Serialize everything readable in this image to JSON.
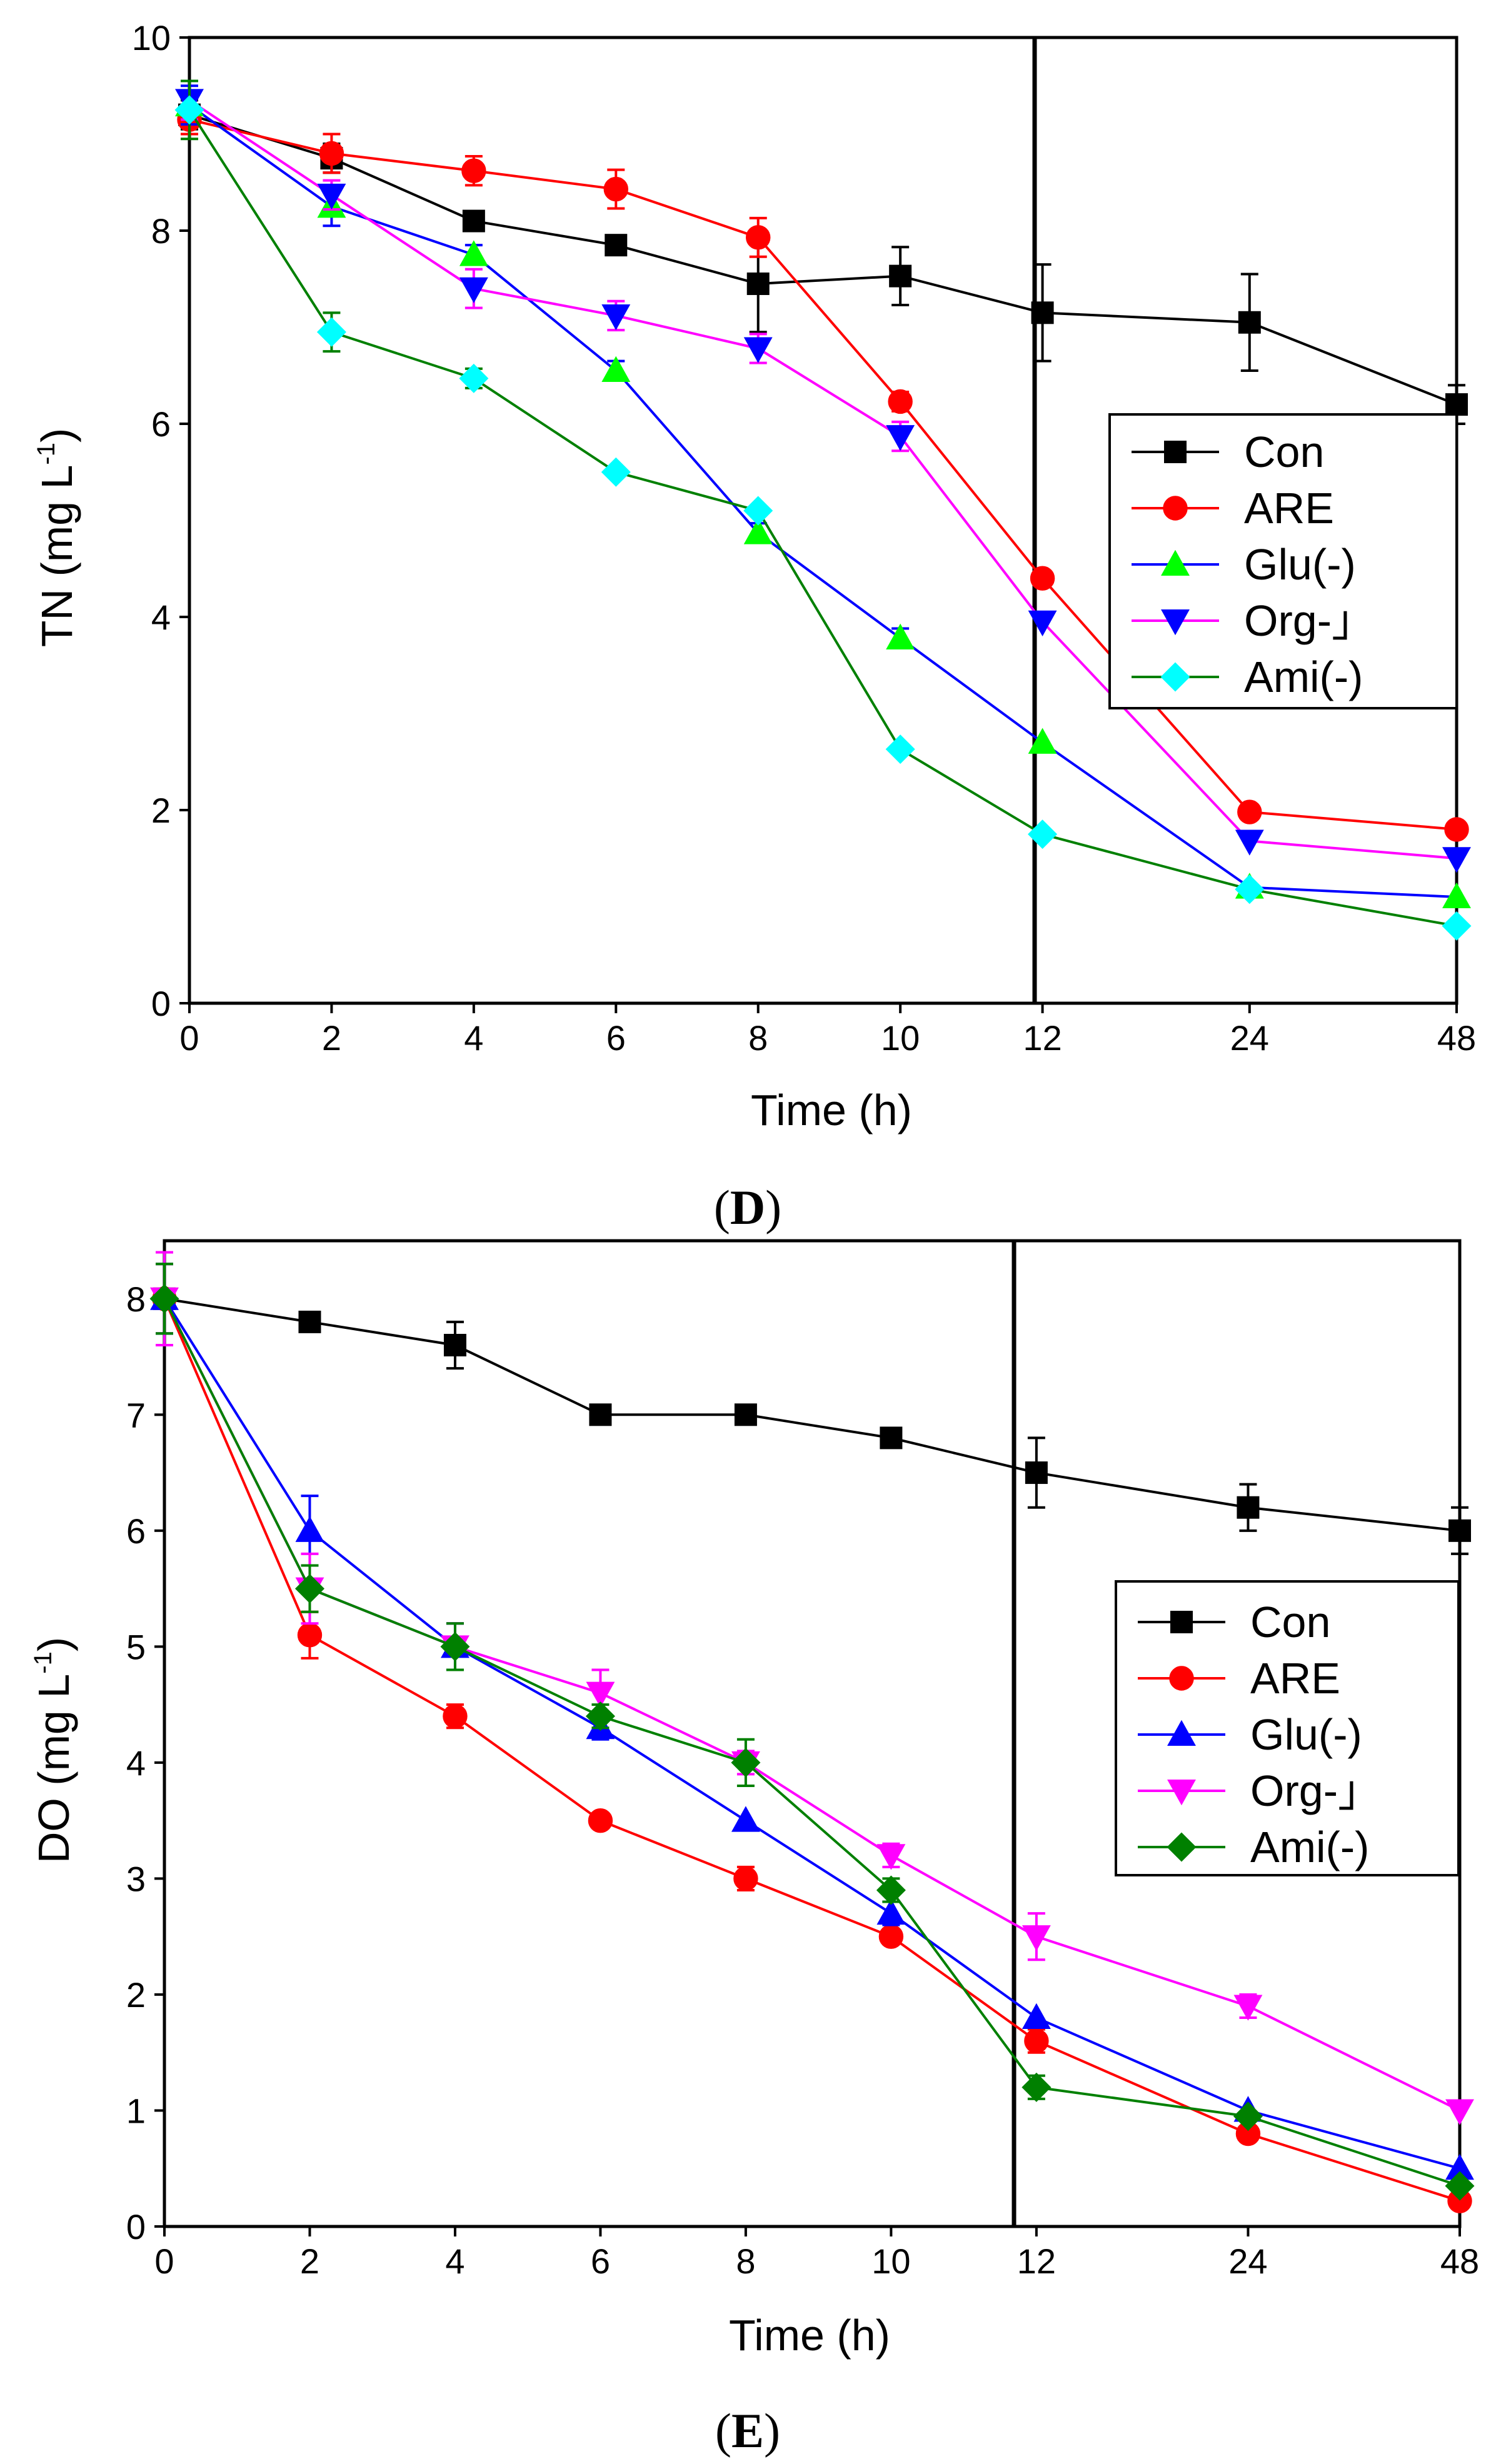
{
  "chart_data": [
    {
      "type": "line",
      "panel_label": "D",
      "xlabel": "Time (h)",
      "ylabel": "TN (mg L",
      "ylabel_superscript": "-1",
      "ylabel_close": ")",
      "categories": [
        "0",
        "2",
        "4",
        "6",
        "8",
        "10",
        "12",
        "24",
        "48"
      ],
      "ylim": [
        0,
        10
      ],
      "yticks": [
        0,
        2,
        4,
        6,
        8,
        10
      ],
      "divider_after_category": "12",
      "legend_position": "right",
      "series": [
        {
          "name": "Con",
          "color": "#000000",
          "marker": "square",
          "values": [
            9.2,
            8.75,
            8.1,
            7.85,
            7.45,
            7.53,
            7.15,
            7.05,
            6.2
          ],
          "errors": [
            0.15,
            0.15,
            0.05,
            0.05,
            0.5,
            0.3,
            0.5,
            0.5,
            0.2
          ]
        },
        {
          "name": "ARE",
          "color": "#ff0000",
          "marker": "circle",
          "values": [
            9.15,
            8.8,
            8.62,
            8.43,
            7.93,
            6.23,
            4.4,
            1.98,
            1.8
          ],
          "errors": [
            0.15,
            0.2,
            0.15,
            0.2,
            0.2,
            0.1,
            0.05,
            0.05,
            0.05
          ]
        },
        {
          "name": "Glu(-)",
          "color": "#00ff00",
          "marker": "triangle-up",
          "values": [
            9.3,
            8.25,
            7.75,
            6.55,
            4.87,
            3.78,
            2.7,
            1.2,
            1.1
          ],
          "errors": [
            0.2,
            0.2,
            0.1,
            0.1,
            0.1,
            0.1,
            0.05,
            0.05,
            0.05
          ]
        },
        {
          "name": "Org-」",
          "color": "#ff00ff",
          "marker": "triangle-down",
          "values": [
            9.35,
            8.37,
            7.4,
            7.12,
            6.78,
            5.87,
            3.95,
            1.68,
            1.5
          ],
          "errors": [
            0.2,
            0.15,
            0.2,
            0.15,
            0.15,
            0.15,
            0.05,
            0.05,
            0.05
          ]
        },
        {
          "name": "Ami(-)",
          "color": "#00ffff",
          "marker": "diamond",
          "values": [
            9.25,
            6.95,
            6.47,
            5.5,
            5.1,
            2.63,
            1.75,
            1.18,
            0.8
          ],
          "errors": [
            0.3,
            0.2,
            0.1,
            0.05,
            0.05,
            0.05,
            0.05,
            0.05,
            0.05
          ]
        }
      ],
      "line_colors": {
        "Con": "#000000",
        "ARE": "#ff0000",
        "Glu(-)": "#0000ff",
        "Org-」": "#ff00ff",
        "Ami(-)": "#008000"
      },
      "marker_fills": {
        "Con": "#000000",
        "ARE": "#ff0000",
        "Glu(-)": "#00ff00",
        "Org-」": "#0000ff",
        "Ami(-)": "#00ffff"
      }
    },
    {
      "type": "line",
      "panel_label": "E",
      "xlabel": "Time (h)",
      "ylabel": "DO (mg L",
      "ylabel_superscript": "-1",
      "ylabel_close": ")",
      "categories": [
        "0",
        "2",
        "4",
        "6",
        "8",
        "10",
        "12",
        "24",
        "48"
      ],
      "ylim": [
        0,
        8.5
      ],
      "yticks": [
        0,
        1,
        2,
        3,
        4,
        5,
        6,
        7,
        8
      ],
      "divider_after_category": "12",
      "legend_position": "right",
      "series": [
        {
          "name": "Con",
          "color": "#000000",
          "marker": "square",
          "values": [
            8.0,
            7.8,
            7.6,
            7.0,
            7.0,
            6.8,
            6.5,
            6.2,
            6.0
          ],
          "errors": [
            0.3,
            0.05,
            0.2,
            0.05,
            0.05,
            0.05,
            0.3,
            0.2,
            0.2
          ]
        },
        {
          "name": "ARE",
          "color": "#ff0000",
          "marker": "circle",
          "values": [
            8.0,
            5.1,
            4.4,
            3.5,
            3.0,
            2.5,
            1.6,
            0.8,
            0.22
          ],
          "errors": [
            0.3,
            0.2,
            0.1,
            0.05,
            0.1,
            0.05,
            0.1,
            0.05,
            0.05
          ]
        },
        {
          "name": "Glu(-)",
          "color": "#0000ff",
          "marker": "triangle-up",
          "values": [
            8.0,
            6.0,
            5.0,
            4.3,
            3.5,
            2.7,
            1.8,
            1.0,
            0.5
          ],
          "errors": [
            0.3,
            0.3,
            0.2,
            0.1,
            0.05,
            0.1,
            0.05,
            0.05,
            0.05
          ]
        },
        {
          "name": "Org-」",
          "color": "#ff00ff",
          "marker": "triangle-down",
          "values": [
            8.0,
            5.5,
            5.0,
            4.6,
            4.0,
            3.2,
            2.5,
            1.9,
            1.0
          ],
          "errors": [
            0.4,
            0.3,
            0.2,
            0.2,
            0.1,
            0.1,
            0.2,
            0.1,
            0.05
          ]
        },
        {
          "name": "Ami(-)",
          "color": "#008000",
          "marker": "diamond",
          "values": [
            8.0,
            5.5,
            5.0,
            4.4,
            4.0,
            2.9,
            1.2,
            0.95,
            0.35
          ],
          "errors": [
            0.3,
            0.2,
            0.2,
            0.1,
            0.2,
            0.1,
            0.1,
            0.05,
            0.05
          ]
        }
      ],
      "line_colors": {
        "Con": "#000000",
        "ARE": "#ff0000",
        "Glu(-)": "#0000ff",
        "Org-」": "#ff00ff",
        "Ami(-)": "#008000"
      },
      "marker_fills": {
        "Con": "#000000",
        "ARE": "#ff0000",
        "Glu(-)": "#0000ff",
        "Org-」": "#ff00ff",
        "Ami(-)": "#008000"
      }
    }
  ]
}
